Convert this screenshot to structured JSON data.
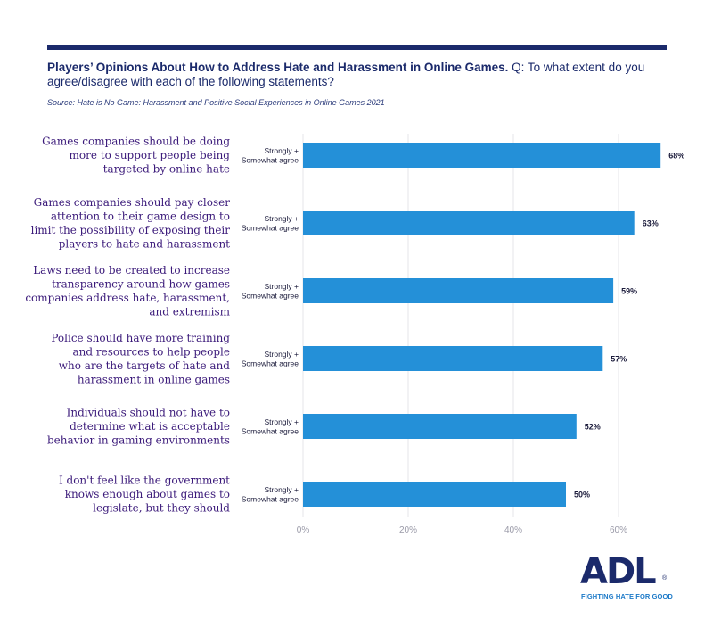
{
  "header": {
    "title_bold": "Players’ Opinions About How to Address Hate and Harassment in Online Games.",
    "title_rest": " Q: To what extent do you agree/disagree with each of the following statements?",
    "source": "Source: Hate is No Game: Harassment and Positive Social Experiences in Online Games 2021"
  },
  "chart_data": {
    "type": "bar",
    "orientation": "horizontal",
    "categories": [
      [
        "Games companies should be doing",
        "more to support people being",
        "targeted by online hate"
      ],
      [
        "Games companies should pay closer",
        "attention to their game design to",
        "limit the possibility of exposing their",
        "players to hate and harassment"
      ],
      [
        "Laws need to be created to increase",
        "transparency around how games",
        "companies address hate, harassment,",
        "and extremism"
      ],
      [
        "Police should have more training",
        "and resources to help people",
        "who are the targets of hate and",
        "harassment in online games"
      ],
      [
        "Individuals should not have to",
        "determine what is acceptable",
        "behavior in gaming environments"
      ],
      [
        "I don't feel like the government",
        "knows enough about games to",
        "legislate, but they should"
      ]
    ],
    "series": [
      {
        "name": "Strongly + Somewhat agree",
        "values": [
          68,
          63,
          59,
          57,
          52,
          50
        ]
      }
    ],
    "series_label_lines": [
      "Strongly +",
      "Somewhat agree"
    ],
    "value_labels": [
      "68%",
      "63%",
      "59%",
      "57%",
      "52%",
      "50%"
    ],
    "xlim": [
      0,
      70
    ],
    "x_ticks": [
      0,
      20,
      40,
      60
    ],
    "x_tick_labels": [
      "0%",
      "20%",
      "40%",
      "60%"
    ],
    "grid": true,
    "bar_color": "#2490d8",
    "grid_color": "#e6e6ea"
  },
  "logo": {
    "text": "ADL",
    "registered": "®",
    "tagline": "FIGHTING HATE FOR GOOD"
  }
}
